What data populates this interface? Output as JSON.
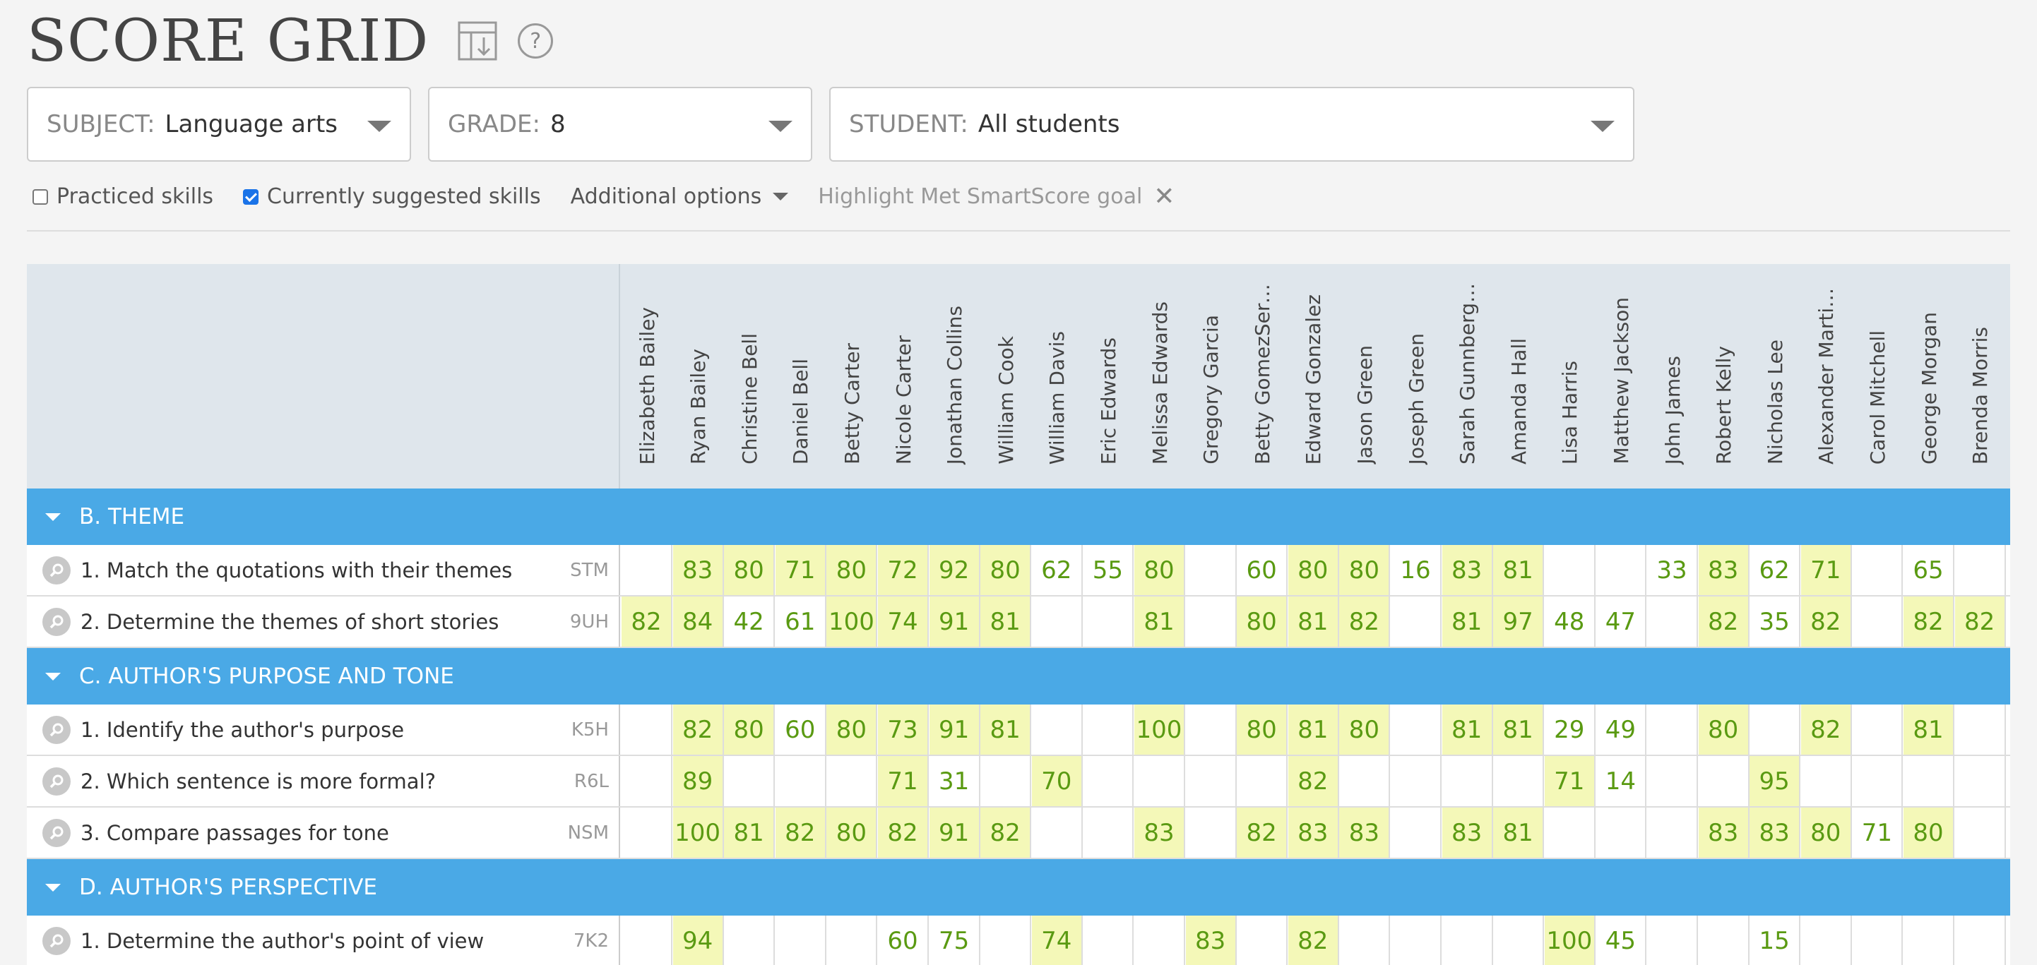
{
  "page_title": "SCORE GRID",
  "filters": {
    "subject": {
      "label": "SUBJECT:",
      "value": "Language arts"
    },
    "grade": {
      "label": "GRADE:",
      "value": "8"
    },
    "student": {
      "label": "STUDENT:",
      "value": "All students"
    }
  },
  "options": {
    "practiced": {
      "label": "Practiced skills",
      "checked": false
    },
    "suggested": {
      "label": "Currently suggested skills",
      "checked": true
    },
    "additional": "Additional options",
    "highlight": "Highlight Met SmartScore goal"
  },
  "students": [
    "Elizabeth Bailey",
    "Ryan Bailey",
    "Christine Bell",
    "Daniel Bell",
    "Betty Carter",
    "Nicole Carter",
    "Jonathan Collins",
    "William Cook",
    "William Davis",
    "Eric Edwards",
    "Melissa Edwards",
    "Gregory Garcia",
    "Betty GomezSerr...",
    "Edward Gonzalez",
    "Jason Green",
    "Joseph Green",
    "Sarah Gunnberg ...",
    "Amanda Hall",
    "Lisa Harris",
    "Matthew Jackson",
    "John James",
    "Robert Kelly",
    "Nicholas Lee",
    "Alexander Martinez",
    "Carol Mitchell",
    "George Morgan",
    "Brenda Morris"
  ],
  "sections": [
    {
      "title": "B. THEME",
      "skills": [
        {
          "name": "1. Match the quotations with their themes",
          "code": "STM",
          "scores": [
            "",
            "83",
            "80",
            "71",
            "80",
            "72",
            "92",
            "80",
            "62",
            "55",
            "80",
            "",
            "60",
            "80",
            "80",
            "16",
            "83",
            "81",
            "",
            "",
            "33",
            "83",
            "62",
            "71",
            "",
            "65",
            ""
          ],
          "met": [
            0,
            1,
            1,
            1,
            1,
            1,
            1,
            1,
            0,
            0,
            1,
            0,
            0,
            1,
            1,
            0,
            1,
            1,
            0,
            0,
            0,
            1,
            0,
            1,
            0,
            0,
            0
          ]
        },
        {
          "name": "2. Determine the themes of short stories",
          "code": "9UH",
          "scores": [
            "82",
            "84",
            "42",
            "61",
            "100",
            "74",
            "91",
            "81",
            "",
            "",
            "81",
            "",
            "80",
            "81",
            "82",
            "",
            "81",
            "97",
            "48",
            "47",
            "",
            "82",
            "35",
            "82",
            "",
            "82",
            "82"
          ],
          "met": [
            1,
            1,
            0,
            0,
            1,
            1,
            1,
            1,
            0,
            0,
            1,
            0,
            1,
            1,
            1,
            0,
            1,
            1,
            0,
            0,
            0,
            1,
            0,
            1,
            0,
            1,
            1
          ]
        }
      ]
    },
    {
      "title": "C. AUTHOR'S PURPOSE AND TONE",
      "skills": [
        {
          "name": "1. Identify the author's purpose",
          "code": "K5H",
          "scores": [
            "",
            "82",
            "80",
            "60",
            "80",
            "73",
            "91",
            "81",
            "",
            "",
            "100",
            "",
            "80",
            "81",
            "80",
            "",
            "81",
            "81",
            "29",
            "49",
            "",
            "80",
            "",
            "82",
            "",
            "81",
            ""
          ],
          "met": [
            0,
            1,
            1,
            0,
            1,
            1,
            1,
            1,
            0,
            0,
            1,
            0,
            1,
            1,
            1,
            0,
            1,
            1,
            0,
            0,
            0,
            1,
            0,
            1,
            0,
            1,
            0
          ]
        },
        {
          "name": "2. Which sentence is more formal?",
          "code": "R6L",
          "scores": [
            "",
            "89",
            "",
            "",
            "",
            "71",
            "31",
            "",
            "70",
            "",
            "",
            "",
            "",
            "82",
            "",
            "",
            "",
            "",
            "71",
            "14",
            "",
            "",
            "95",
            "",
            "",
            "",
            ""
          ],
          "met": [
            0,
            1,
            0,
            0,
            0,
            1,
            0,
            0,
            1,
            0,
            0,
            0,
            0,
            1,
            0,
            0,
            0,
            0,
            1,
            0,
            0,
            0,
            1,
            0,
            0,
            0,
            0
          ]
        },
        {
          "name": "3. Compare passages for tone",
          "code": "NSM",
          "scores": [
            "",
            "100",
            "81",
            "82",
            "80",
            "82",
            "91",
            "82",
            "",
            "",
            "83",
            "",
            "82",
            "83",
            "83",
            "",
            "83",
            "81",
            "",
            "",
            "",
            "83",
            "83",
            "80",
            "71",
            "80",
            ""
          ],
          "met": [
            0,
            1,
            1,
            1,
            1,
            1,
            1,
            1,
            0,
            0,
            1,
            0,
            1,
            1,
            1,
            0,
            1,
            1,
            0,
            0,
            0,
            1,
            1,
            1,
            0,
            1,
            0
          ]
        }
      ]
    },
    {
      "title": "D. AUTHOR'S PERSPECTIVE",
      "skills": [
        {
          "name": "1. Determine the author's point of view",
          "code": "7K2",
          "scores": [
            "",
            "94",
            "",
            "",
            "",
            "60",
            "75",
            "",
            "74",
            "",
            "",
            "83",
            "",
            "82",
            "",
            "",
            "",
            "",
            "100",
            "45",
            "",
            "",
            "15",
            "",
            "",
            "",
            ""
          ],
          "met": [
            0,
            1,
            0,
            0,
            0,
            0,
            0,
            0,
            1,
            0,
            0,
            1,
            0,
            1,
            0,
            0,
            0,
            0,
            1,
            0,
            0,
            0,
            0,
            0,
            0,
            0,
            0
          ]
        }
      ]
    }
  ]
}
